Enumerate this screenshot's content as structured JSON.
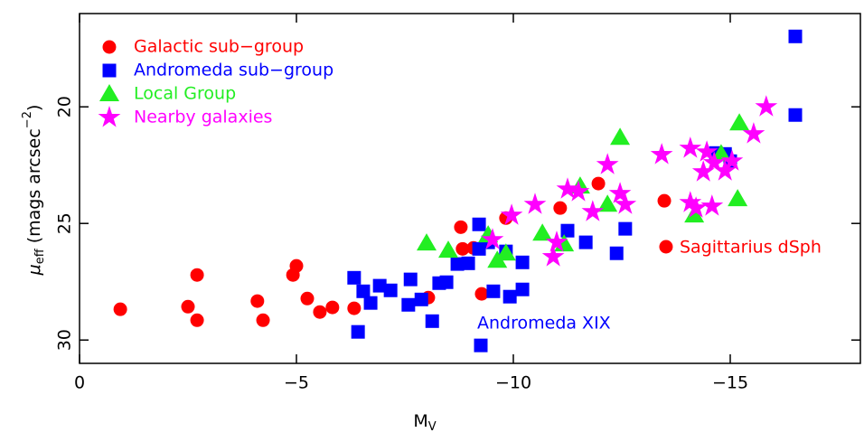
{
  "chart_data": {
    "type": "scatter",
    "xlabel": "M",
    "xlabel_sub": "V",
    "ylabel_parts": [
      "μ",
      "eff",
      " (mags arcsec",
      "−2",
      ")"
    ],
    "xlim": [
      0,
      -18
    ],
    "ylim": [
      31,
      16
    ],
    "xticks": [
      0,
      {
        "value": -5,
        "label": "−5"
      },
      {
        "value": -10,
        "label": "−10"
      },
      {
        "value": -15,
        "label": "−15"
      }
    ],
    "yticks": [
      20,
      25,
      30
    ],
    "legend": "upper left",
    "annotations": [
      {
        "text": "Sagittarius dSph",
        "color": "#ff0000"
      },
      {
        "text": "Andromeda XIX",
        "color": "#0000ff"
      }
    ],
    "series": [
      {
        "name": "Galactic sub−group",
        "color": "#ff0000",
        "marker": "circle",
        "x": [
          -0.94,
          -2.5,
          -2.71,
          -2.71,
          -4.1,
          -4.23,
          -4.92,
          -5.0,
          -5.25,
          -5.54,
          -5.83,
          -6.33,
          -8.04,
          -8.79,
          -8.83,
          -9.08,
          -9.27,
          -9.83,
          -11.08,
          -11.96,
          -13.48,
          -13.52
        ],
        "values": [
          28.68,
          28.57,
          29.15,
          27.21,
          28.33,
          29.15,
          27.21,
          26.82,
          28.22,
          28.8,
          28.6,
          28.64,
          28.18,
          25.16,
          26.09,
          26.05,
          28.02,
          24.77,
          24.34,
          23.29,
          24.03,
          26.0
        ]
      },
      {
        "name": "Andromeda sub−group",
        "color": "#0000ff",
        "marker": "square",
        "x": [
          -16.5,
          -16.5,
          -6.33,
          -6.42,
          -6.54,
          -6.71,
          -6.92,
          -7.17,
          -7.58,
          -7.63,
          -7.88,
          -8.13,
          -8.29,
          -8.46,
          -8.71,
          -8.96,
          -9.21,
          -9.21,
          -9.25,
          -9.42,
          -9.54,
          -9.83,
          -9.92,
          -10.21,
          -10.21,
          -11.25,
          -11.67,
          -12.38,
          -12.58,
          -14.67,
          -14.88,
          -15.0
        ],
        "values": [
          16.98,
          20.35,
          27.33,
          29.65,
          27.91,
          28.41,
          27.67,
          27.87,
          28.49,
          27.4,
          28.26,
          29.19,
          27.56,
          27.52,
          26.74,
          26.71,
          25.04,
          26.09,
          30.23,
          25.81,
          27.91,
          26.2,
          28.14,
          27.83,
          26.67,
          25.31,
          25.81,
          26.28,
          25.23,
          21.98,
          22.02,
          22.33
        ]
      },
      {
        "name": "Local Group",
        "color": "#22ee22",
        "marker": "triangle",
        "x": [
          -8.0,
          -8.5,
          -9.42,
          -9.63,
          -9.83,
          -10.67,
          -11.17,
          -11.54,
          -12.17,
          -12.46,
          -14.17,
          -14.79,
          -15.17,
          -15.21
        ],
        "values": [
          25.85,
          26.16,
          25.5,
          26.59,
          26.28,
          25.43,
          25.89,
          23.41,
          24.19,
          21.32,
          24.65,
          22.02,
          23.95,
          20.7
        ]
      },
      {
        "name": "Nearby galaxies",
        "color": "#ff00ff",
        "marker": "star",
        "x": [
          -9.52,
          -9.96,
          -10.5,
          -10.92,
          -11.0,
          -11.25,
          -11.5,
          -11.83,
          -12.17,
          -12.46,
          -12.58,
          -13.42,
          -14.08,
          -14.21,
          -14.58,
          -14.63,
          -14.08,
          -14.38,
          -14.46,
          -14.88,
          -15.04,
          -15.54,
          -15.83
        ],
        "values": [
          25.7,
          24.65,
          24.19,
          26.43,
          25.81,
          23.53,
          23.64,
          24.5,
          22.48,
          23.72,
          24.19,
          22.05,
          24.11,
          24.34,
          24.26,
          22.4,
          21.78,
          22.79,
          21.94,
          22.75,
          22.33,
          21.16,
          20.0
        ]
      }
    ]
  }
}
